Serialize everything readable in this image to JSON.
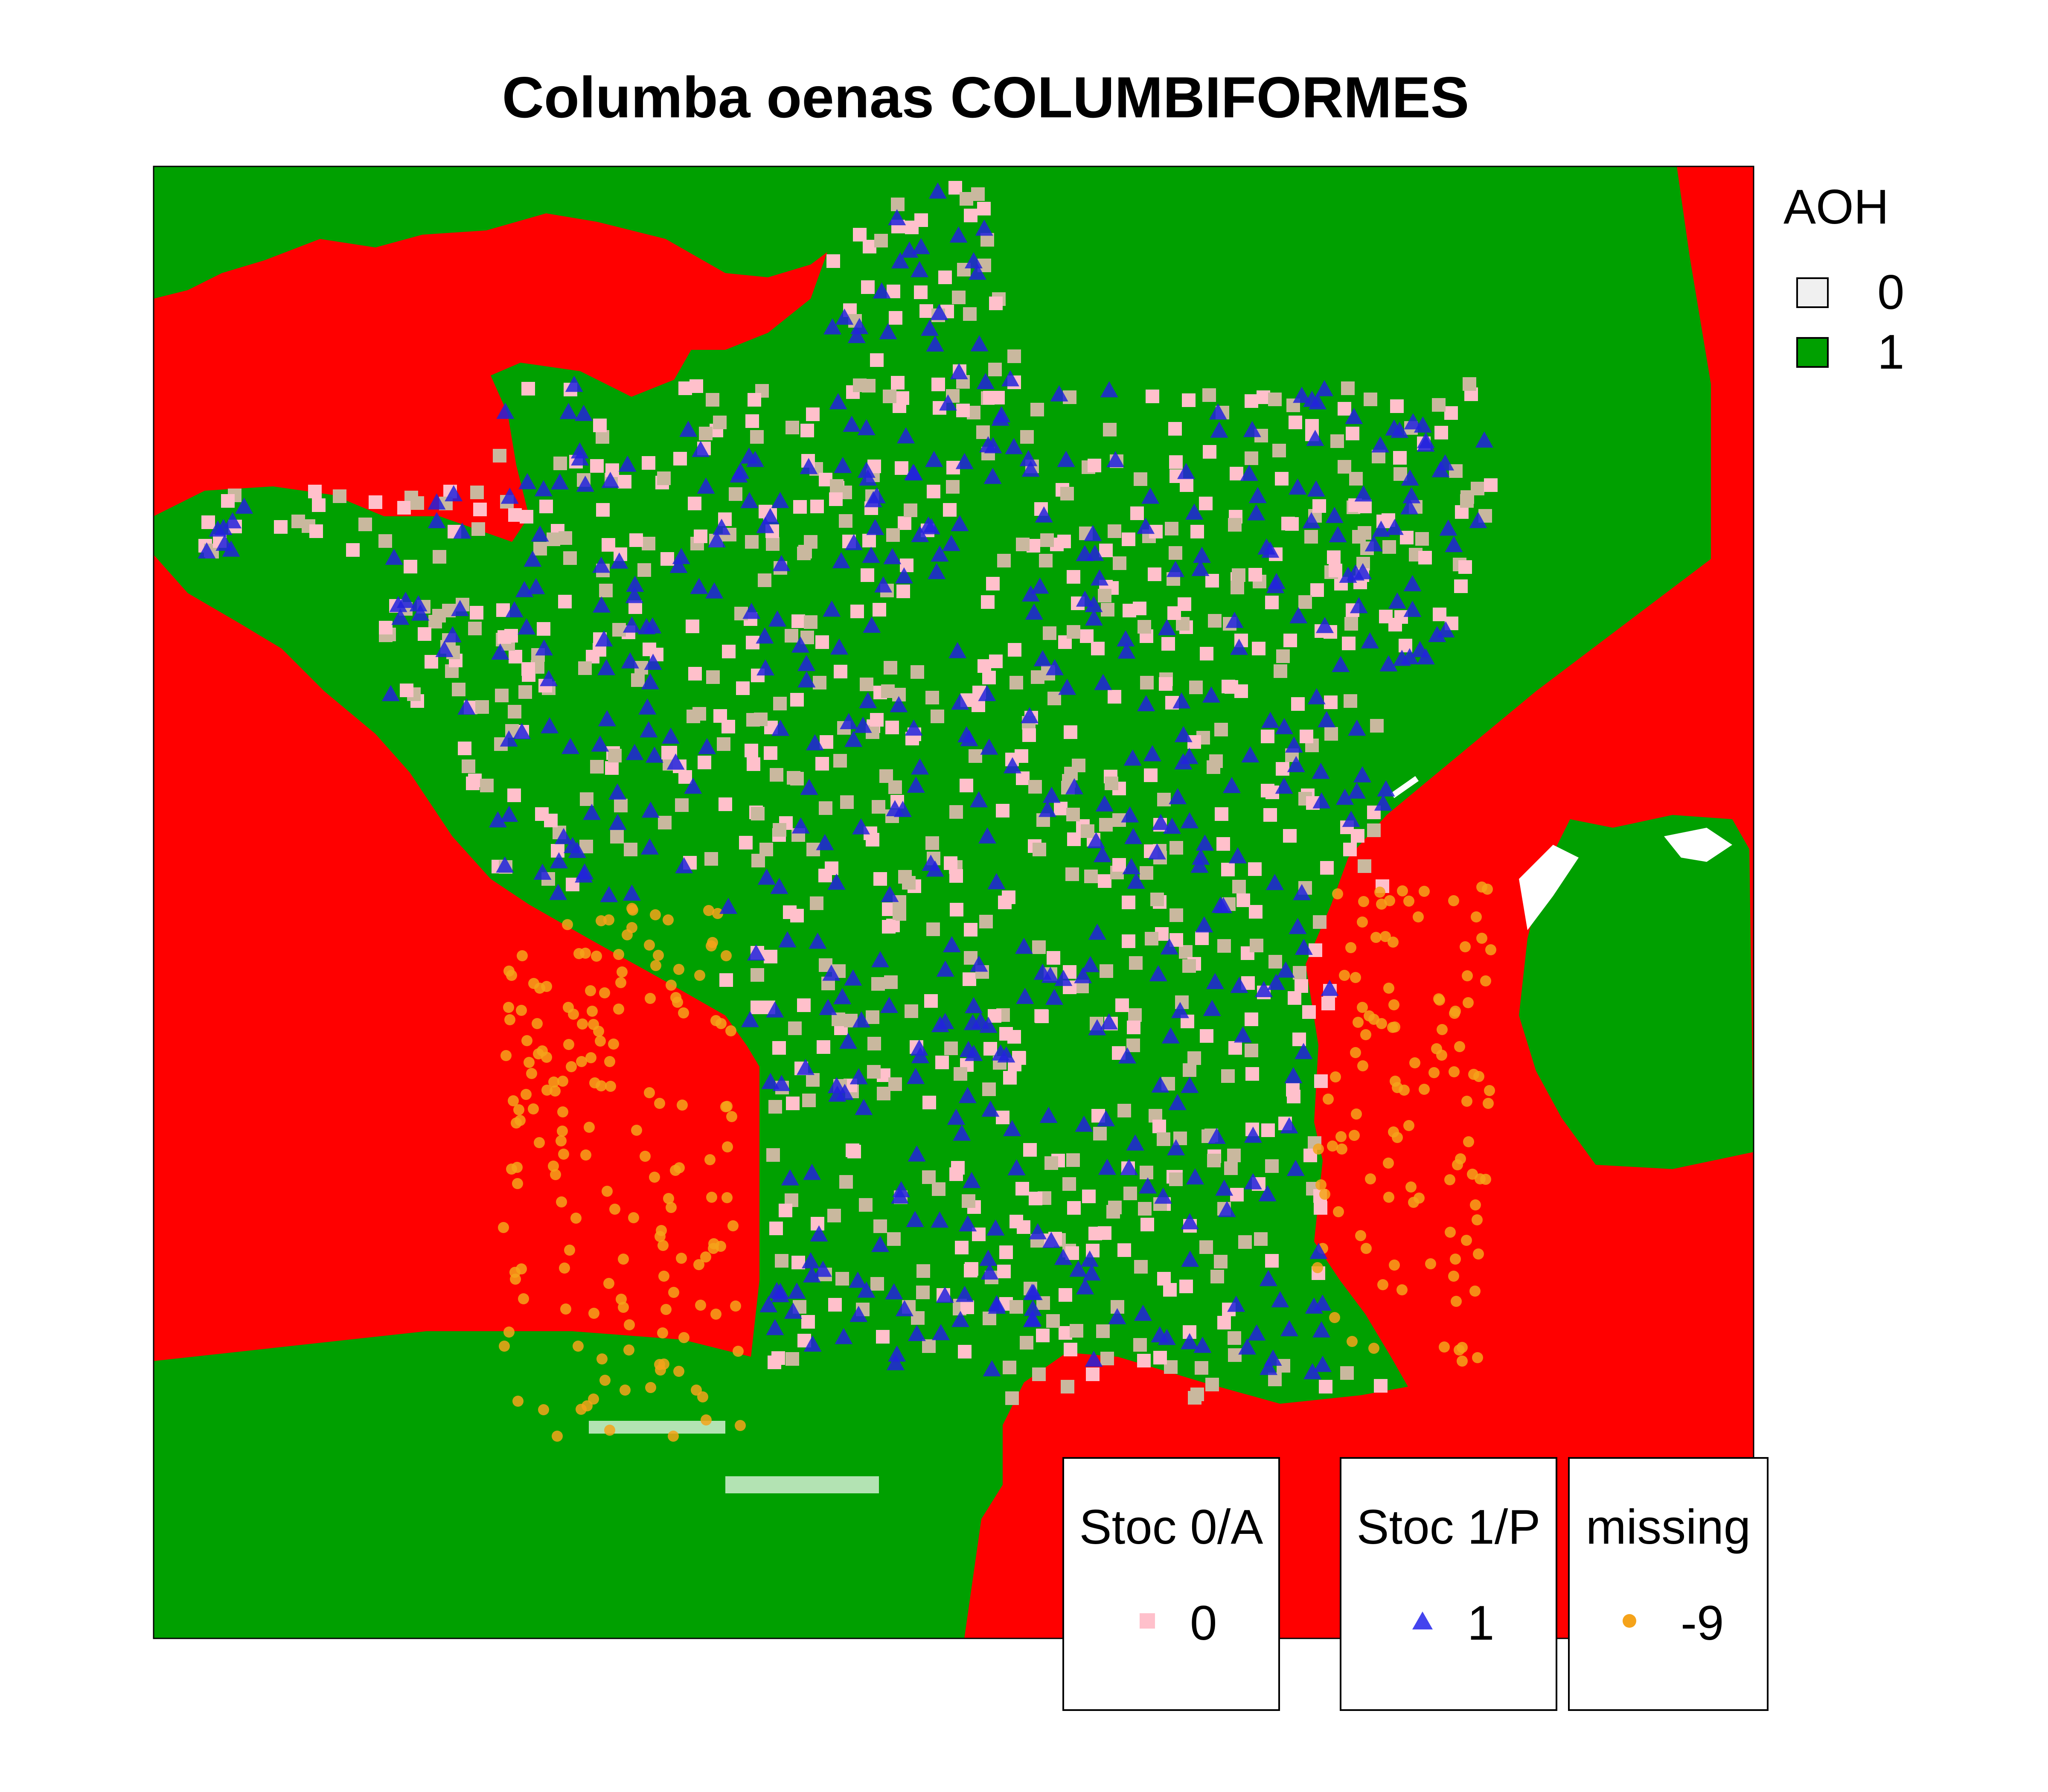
{
  "map": {
    "title": "Columba oenas COLUMBIFORMES",
    "colors": {
      "aoh_0_background": "#ff0000",
      "aoh_1_background": "#00a000",
      "white_gaps": "#ffffff",
      "stoc_absent": "#ffc0cb",
      "stoc_absent_blend": "#c9b89e",
      "stoc_present": "#2222dd",
      "missing": "#f5a31a"
    },
    "aoh_legend": {
      "title": "AOH",
      "items": [
        {
          "label": "0",
          "fill": "#f0f0f0"
        },
        {
          "label": "1",
          "fill": "#00a000"
        }
      ]
    },
    "point_legends": [
      {
        "title": "Stoc 0/A",
        "label": "0",
        "symbol": "square",
        "color": "#ffc0cb"
      },
      {
        "title": "Stoc 1/P",
        "label": "1",
        "symbol": "triangle",
        "color": "#4444ee"
      },
      {
        "title": "missing",
        "label": "-9",
        "symbol": "circle",
        "color": "#f5a31a"
      }
    ]
  }
}
